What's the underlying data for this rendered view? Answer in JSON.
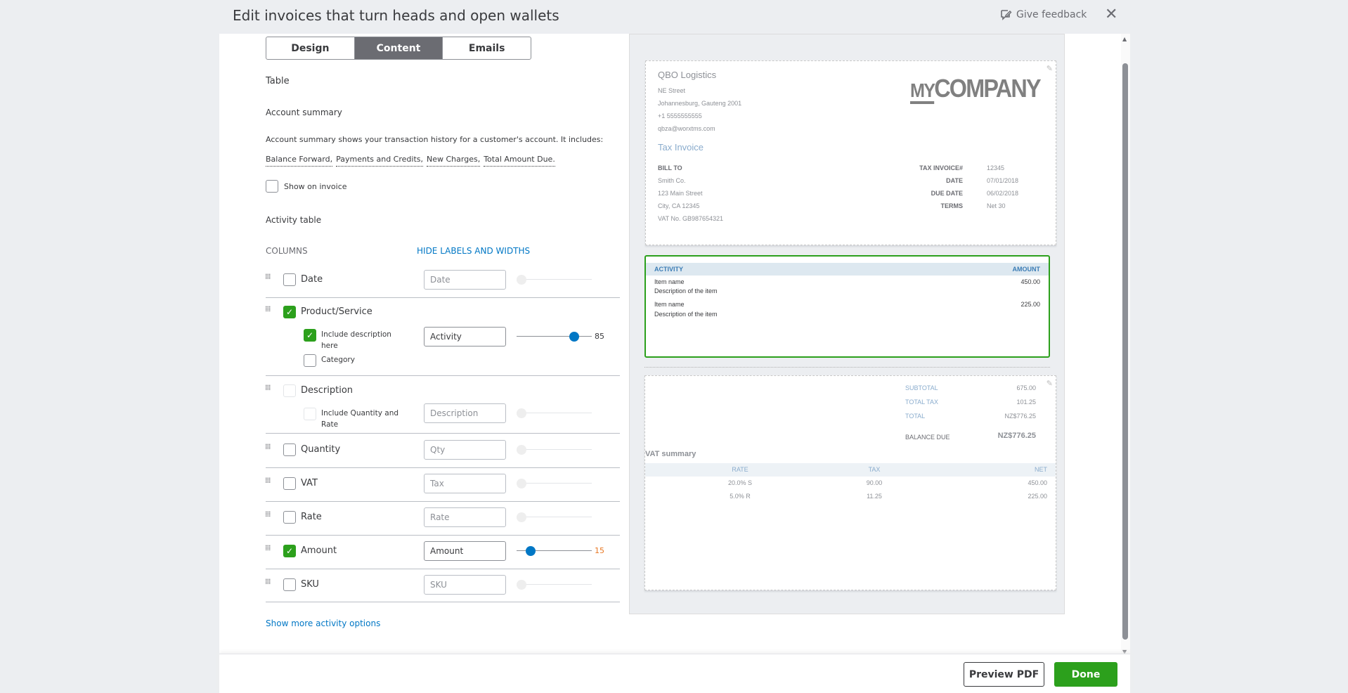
{
  "header": {
    "title": "Edit invoices that turn heads and open wallets",
    "feedback": "Give feedback"
  },
  "tabs": [
    {
      "label": "Design"
    },
    {
      "label": "Content",
      "active": true
    },
    {
      "label": "Emails"
    }
  ],
  "content": {
    "section": "Table",
    "account_summary": {
      "heading": "Account summary",
      "description": "Account summary shows your transaction history for a customer's account. It includes:",
      "items": [
        "Balance Forward,",
        "Payments and Credits,",
        "New Charges,",
        "Total Amount Due."
      ],
      "show_on_invoice": "Show on invoice",
      "checked": false
    },
    "activity": {
      "heading": "Activity table",
      "columns_label": "COLUMNS",
      "hide_link": "HIDE LABELS AND WIDTHS",
      "rows": [
        {
          "label": "Date",
          "checked": false,
          "placeholder": "Date",
          "value": ""
        },
        {
          "label": "Product/Service",
          "checked": true,
          "placeholder": "",
          "value": "Activity",
          "width": 85,
          "sub": [
            {
              "label": "Include description here",
              "checked": true
            },
            {
              "label": "Category",
              "checked": false
            }
          ]
        },
        {
          "label": "Description",
          "checked": false,
          "disabled": true,
          "placeholder": "Description",
          "value": "",
          "sub": [
            {
              "label": "Include Quantity and Rate",
              "checked": false
            }
          ]
        },
        {
          "label": "Quantity",
          "checked": false,
          "placeholder": "Qty",
          "value": ""
        },
        {
          "label": "VAT",
          "checked": false,
          "placeholder": "Tax",
          "value": ""
        },
        {
          "label": "Rate",
          "checked": false,
          "placeholder": "Rate",
          "value": ""
        },
        {
          "label": "Amount",
          "checked": true,
          "placeholder": "",
          "value": "Amount",
          "width": 15
        },
        {
          "label": "SKU",
          "checked": false,
          "placeholder": "SKU",
          "value": ""
        }
      ],
      "more_link": "Show more activity options"
    }
  },
  "preview": {
    "company": "QBO Logistics",
    "address": [
      "NE Street",
      "Johannesburg, Gauteng 2001",
      "+1 5555555555",
      "qbza@worxtms.com"
    ],
    "logo": "MYCOMPANY",
    "doc_title": "Tax Invoice",
    "bill_to": {
      "label": "BILL TO",
      "lines": [
        "Smith Co.",
        "123 Main Street",
        "City, CA 12345",
        "VAT No.  GB987654321"
      ]
    },
    "meta": [
      {
        "k": "TAX INVOICE#",
        "v": "12345"
      },
      {
        "k": "DATE",
        "v": "07/01/2018"
      },
      {
        "k": "DUE DATE",
        "v": "06/02/2018"
      },
      {
        "k": "TERMS",
        "v": "Net 30"
      }
    ],
    "table": {
      "headers": [
        "ACTIVITY",
        "AMOUNT"
      ],
      "rows": [
        {
          "name": "Item name",
          "desc": "Description of the item",
          "amount": "450.00"
        },
        {
          "name": "Item name",
          "desc": "Description of the item",
          "amount": "225.00"
        }
      ]
    },
    "totals": [
      {
        "k": "SUBTOTAL",
        "v": "675.00"
      },
      {
        "k": "TOTAL TAX",
        "v": "101.25"
      },
      {
        "k": "TOTAL",
        "v": "NZ$776.25"
      }
    ],
    "balance": {
      "k": "BALANCE DUE",
      "v": "NZ$776.25"
    },
    "vat": {
      "title": "VAT summary",
      "headers": [
        "RATE",
        "TAX",
        "NET"
      ],
      "rows": [
        [
          "20.0% S",
          "90.00",
          "450.00"
        ],
        [
          "5.0% R",
          "11.25",
          "225.00"
        ]
      ]
    }
  },
  "footer": {
    "preview_pdf": "Preview PDF",
    "done": "Done"
  },
  "colors": {
    "accent": "#0077c5",
    "green": "#2ca01c",
    "active_tab": "#6b6c72"
  }
}
